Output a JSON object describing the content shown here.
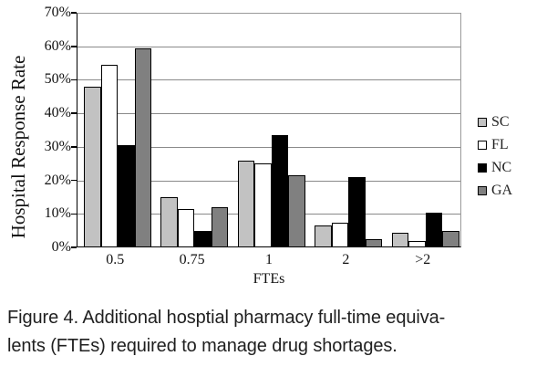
{
  "caption": {
    "line1": "Figure 4. Additional hosptial pharmacy full-time equiva-",
    "line2": "lents (FTEs) required to manage drug shortages."
  },
  "chart_data": {
    "type": "bar",
    "title": "",
    "xlabel": "FTEs",
    "ylabel": "Hospital Response Rate",
    "categories": [
      "0.5",
      "0.75",
      "1",
      "2",
      ">2"
    ],
    "series": [
      {
        "name": "SC",
        "color": "#c2c2c2",
        "values": [
          48,
          15,
          26,
          6.5,
          4.5
        ]
      },
      {
        "name": "FL",
        "color": "#ffffff",
        "values": [
          54.5,
          11.5,
          25,
          7.5,
          2
        ]
      },
      {
        "name": "NC",
        "color": "#000000",
        "values": [
          30.5,
          5,
          33.5,
          21,
          10.5
        ]
      },
      {
        "name": "GA",
        "color": "#808080",
        "values": [
          59.5,
          12,
          21.5,
          2.5,
          5
        ]
      }
    ],
    "ylim": [
      0,
      70
    ],
    "yticks": [
      "0%",
      "10%",
      "20%",
      "30%",
      "40%",
      "50%",
      "60%",
      "70%"
    ],
    "grid": true,
    "legend_position": "right",
    "bar_border_color": "#000000",
    "gridline_color": "#8a8a8a",
    "axis_color": "#000000"
  }
}
